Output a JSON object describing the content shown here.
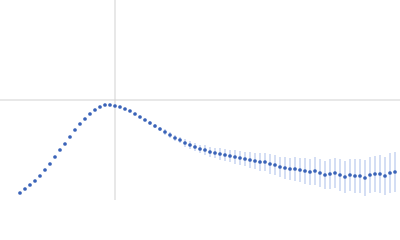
{
  "chart_data": {
    "type": "scatter",
    "x": [
      20,
      25,
      30,
      35,
      40,
      45,
      50,
      55,
      60,
      65,
      70,
      75,
      80,
      85,
      90,
      95,
      100,
      105,
      110,
      115,
      120,
      125,
      130,
      135,
      140,
      145,
      150,
      155,
      160,
      165,
      170,
      175,
      180,
      185,
      190,
      195,
      200,
      205,
      210,
      215,
      220,
      225,
      230,
      235,
      240,
      245,
      250,
      255,
      260,
      265,
      270,
      275,
      280,
      285,
      290,
      295,
      300,
      305,
      310,
      315,
      320,
      325,
      330,
      335,
      340,
      345,
      350,
      355,
      360,
      365,
      370,
      375,
      380,
      385,
      390,
      395
    ],
    "values": [
      7,
      11,
      15,
      19,
      24,
      30,
      36,
      43,
      50,
      56,
      63,
      70,
      76,
      81,
      86,
      90,
      93,
      95,
      95,
      94,
      93,
      91,
      89,
      86,
      83,
      80,
      77,
      74,
      71,
      68,
      65,
      62,
      60,
      57,
      55,
      53,
      51,
      50,
      48,
      47,
      46,
      45,
      44,
      43,
      42,
      41,
      40,
      39,
      38,
      38,
      36,
      35,
      33,
      32,
      31,
      31,
      30,
      29,
      28,
      29,
      27,
      25,
      26,
      27,
      25,
      23,
      25,
      24,
      24,
      22,
      25,
      26,
      26,
      24,
      27,
      28
    ],
    "errors": [
      0.5,
      0.5,
      0.5,
      0.5,
      0.5,
      0.5,
      0.5,
      0.5,
      0.5,
      0.5,
      0.5,
      0.5,
      0.5,
      0.5,
      0.5,
      0.5,
      0.5,
      0.5,
      0.5,
      0.5,
      0.5,
      0.5,
      0.5,
      0.5,
      1,
      1,
      2,
      2,
      2,
      3,
      3,
      3,
      3,
      4,
      4,
      4,
      4,
      5,
      5,
      5,
      6,
      6,
      6,
      7,
      7,
      7,
      8,
      8,
      9,
      9,
      10,
      10,
      10,
      11,
      11,
      12,
      12,
      13,
      13,
      14,
      14,
      14,
      15,
      15,
      16,
      16,
      16,
      17,
      17,
      18,
      18,
      18,
      19,
      19,
      20,
      20
    ],
    "color": "#3a63b8",
    "error_color": "#a9bde8",
    "xlim": [
      0,
      400
    ],
    "ylim": [
      0,
      200
    ],
    "xgrid": [
      115
    ],
    "ygrid": [
      100
    ],
    "grid_color": "#d0d0d0"
  }
}
